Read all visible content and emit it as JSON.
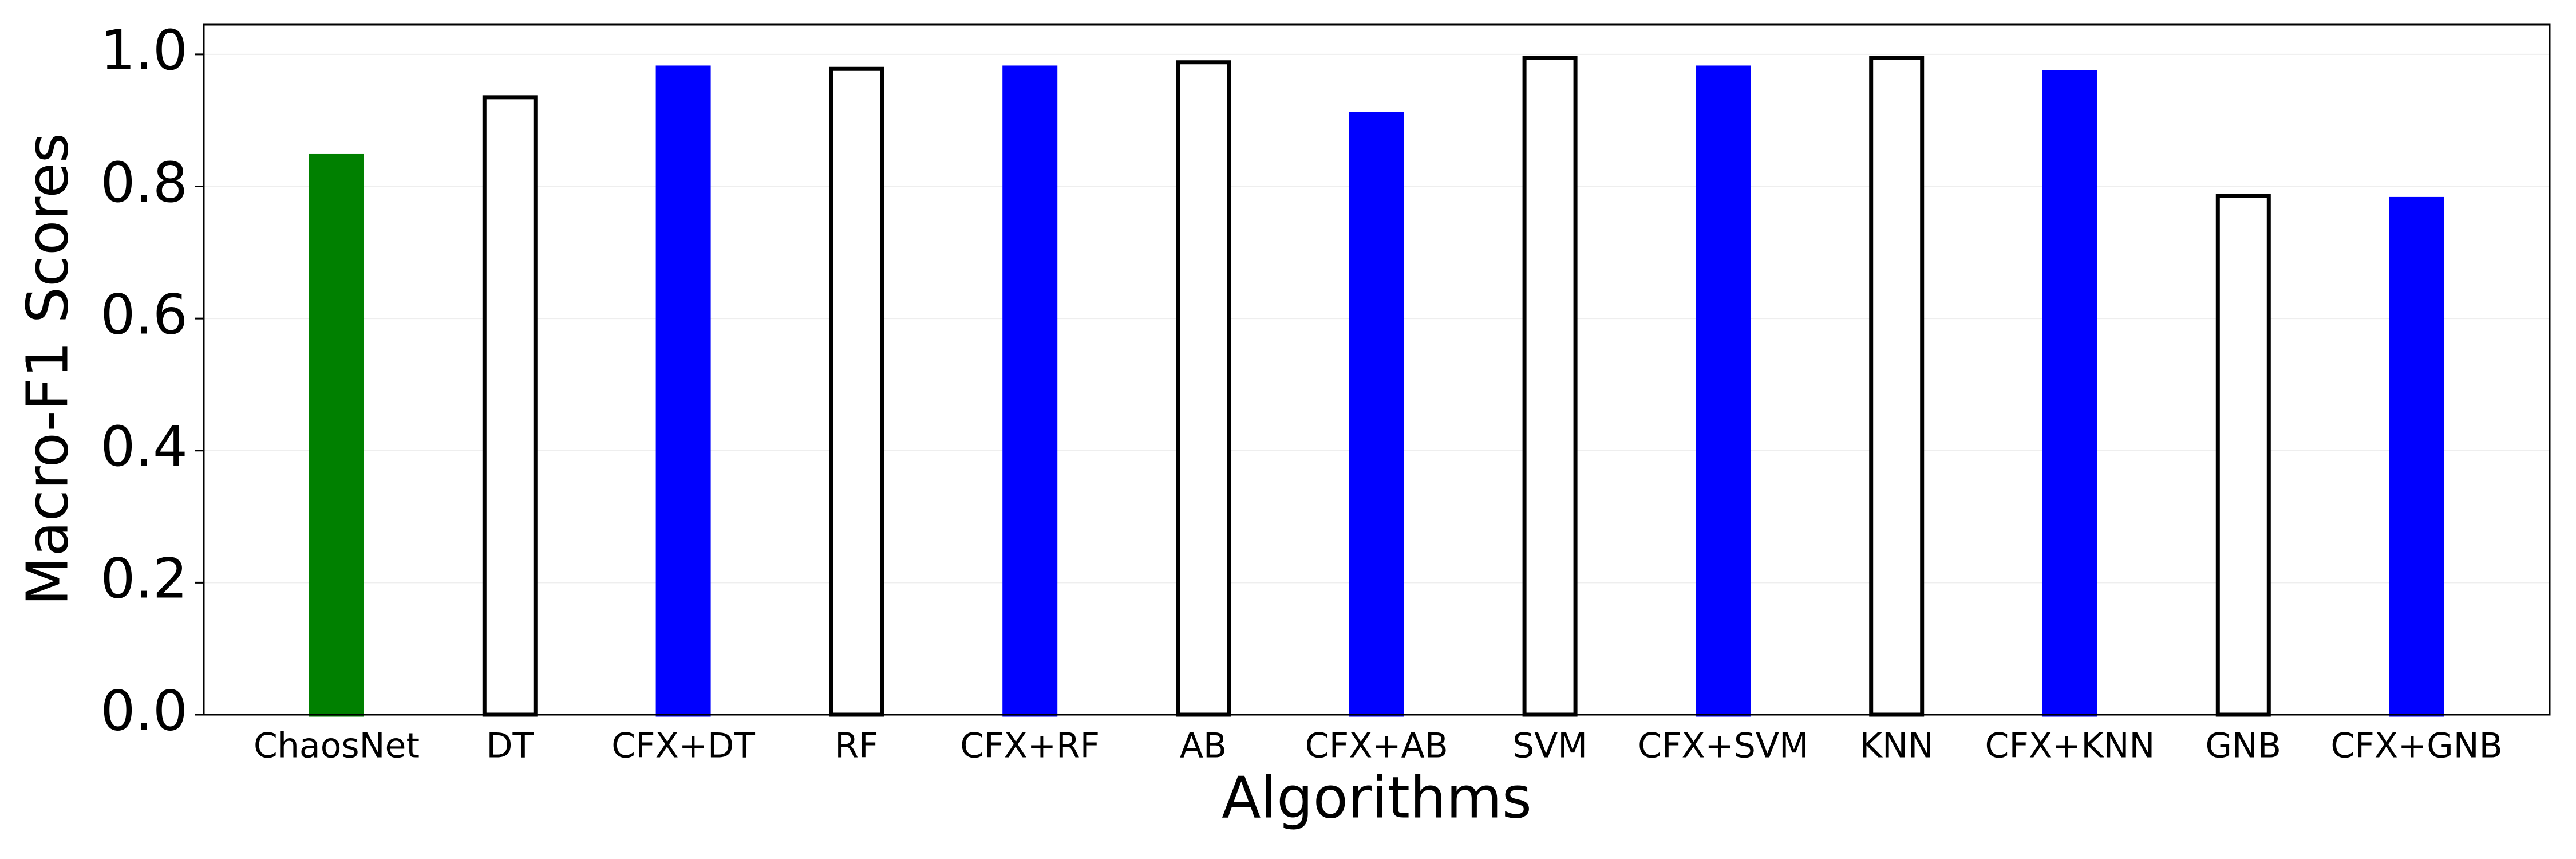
{
  "chart_data": {
    "type": "bar",
    "xlabel": "Algorithms",
    "ylabel": "Macro-F1 Scores",
    "categories": [
      "ChaosNet",
      "DT",
      "CFX+DT",
      "RF",
      "CFX+RF",
      "AB",
      "CFX+AB",
      "SVM",
      "CFX+SVM",
      "KNN",
      "CFX+KNN",
      "GNB",
      "CFX+GNB"
    ],
    "values": [
      0.846,
      0.935,
      0.98,
      0.978,
      0.98,
      0.988,
      0.91,
      0.995,
      0.98,
      0.995,
      0.973,
      0.786,
      0.781
    ],
    "colors": [
      "#008000",
      "#ffffff",
      "#0000ff",
      "#ffffff",
      "#0000ff",
      "#ffffff",
      "#0000ff",
      "#ffffff",
      "#0000ff",
      "#ffffff",
      "#0000ff",
      "#ffffff",
      "#0000ff"
    ],
    "edge_colors": [
      "#008000",
      "#000000",
      "#0000ff",
      "#000000",
      "#0000ff",
      "#000000",
      "#0000ff",
      "#000000",
      "#0000ff",
      "#000000",
      "#0000ff",
      "#000000",
      "#0000ff"
    ],
    "ylim": [
      0,
      1.045
    ],
    "yticks": [
      {
        "value": 0,
        "label": "0.0"
      },
      0.2,
      0.4,
      0.6,
      0.8,
      {
        "value": 1,
        "label": "1.0"
      }
    ],
    "grid": true
  }
}
